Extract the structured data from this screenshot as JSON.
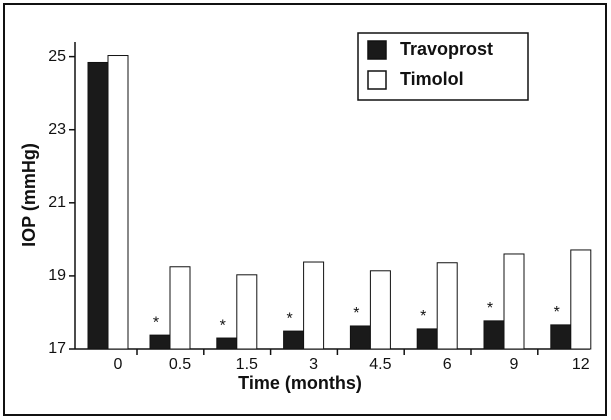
{
  "chart_data": {
    "type": "bar",
    "x_label": "Time (months)",
    "y_label": "IOP (mmHg)",
    "categories": [
      "0",
      "0.5",
      "1.5",
      "3",
      "4.5",
      "6",
      "9",
      "12"
    ],
    "series": [
      {
        "name": "Travoprost",
        "color": "#1a1a1a",
        "values": [
          24.84,
          17.38,
          17.3,
          17.49,
          17.63,
          17.55,
          17.77,
          17.66
        ],
        "annotations": [
          null,
          "*",
          "*",
          "*",
          "*",
          "*",
          "*",
          "*"
        ]
      },
      {
        "name": "Timolol",
        "color": "#ffffff",
        "values": [
          25.03,
          19.25,
          19.03,
          19.38,
          19.14,
          19.36,
          19.6,
          19.71
        ]
      }
    ],
    "ylim": [
      17,
      25.4
    ],
    "yticks": [
      17,
      19,
      21,
      23,
      25
    ],
    "legend": "top-right"
  }
}
